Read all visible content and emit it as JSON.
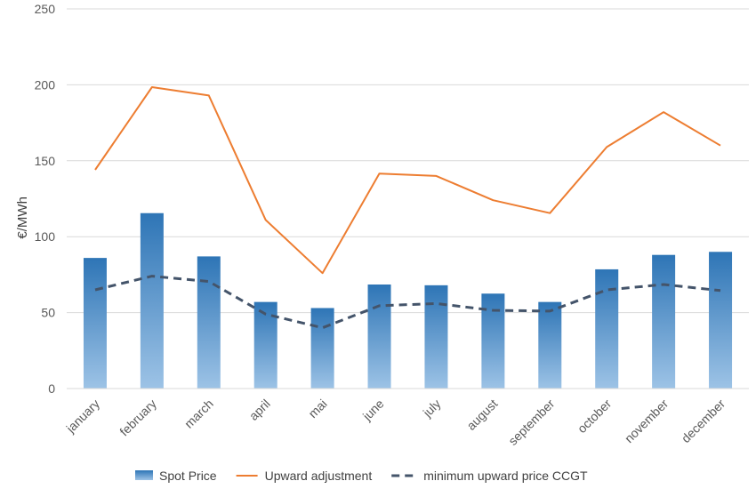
{
  "chart_data": {
    "type": "bar",
    "title": "",
    "xlabel": "",
    "ylabel": "€/MWh",
    "ylim": [
      0,
      250
    ],
    "yticks": [
      0,
      50,
      100,
      150,
      200,
      250
    ],
    "grid": true,
    "legend_position": "bottom",
    "categories": [
      "january",
      "february",
      "march",
      "april",
      "mai",
      "june",
      "july",
      "august",
      "september",
      "october",
      "november",
      "december"
    ],
    "series": [
      {
        "name": "Spot Price",
        "kind": "bar",
        "color": "#2e75b6",
        "color_light": "#9dc3e6",
        "values": [
          86,
          115.5,
          87,
          57,
          53,
          68.5,
          68,
          62.5,
          57,
          78.5,
          88,
          90
        ]
      },
      {
        "name": "Upward adjustment",
        "kind": "line",
        "color": "#ed7d31",
        "values": [
          144,
          198.5,
          193,
          111,
          76,
          141.5,
          140,
          124,
          115.5,
          159,
          182,
          160
        ]
      },
      {
        "name": "minimum upward price CCGT",
        "kind": "dashed-line",
        "color": "#44546a",
        "values": [
          65,
          74,
          70.5,
          49,
          40,
          54.5,
          56,
          51.5,
          51,
          65,
          68.5,
          64.5
        ]
      }
    ]
  }
}
